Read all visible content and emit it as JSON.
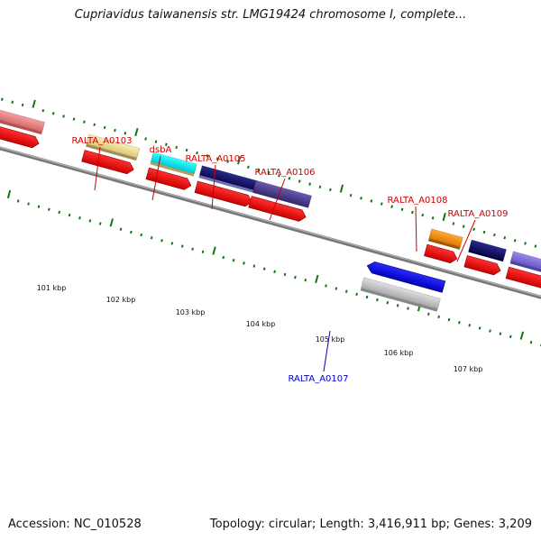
{
  "title": "Cupriavidus taiwanensis str. LMG19424 chromosome I, complete...",
  "footer": {
    "accession": "Accession: NC_010528",
    "topology": "Topology: circular; Length: 3,416,911 bp; Genes: 3,209"
  },
  "gene_labels": [
    {
      "text": "RALTA_A0103",
      "color": "#cc0000"
    },
    {
      "text": "dsbA",
      "color": "#cc0000"
    },
    {
      "text": "RALTA_A0105",
      "color": "#cc0000"
    },
    {
      "text": "RALTA_A0106",
      "color": "#cc0000"
    },
    {
      "text": "RALTA_A0107",
      "color": "#0000cc"
    },
    {
      "text": "RALTA_A0108",
      "color": "#cc0000"
    },
    {
      "text": "RALTA_A0109",
      "color": "#cc0000"
    }
  ],
  "kbp_labels": [
    "101 kbp",
    "102 kbp",
    "103 kbp",
    "104 kbp",
    "105 kbp",
    "106 kbp",
    "107 kbp"
  ],
  "colors": {
    "cds": "#ee0000",
    "backbone": "#777777",
    "ticks": "#117711",
    "forward_label": "#cc0000",
    "reverse_label": "#0000cc"
  }
}
